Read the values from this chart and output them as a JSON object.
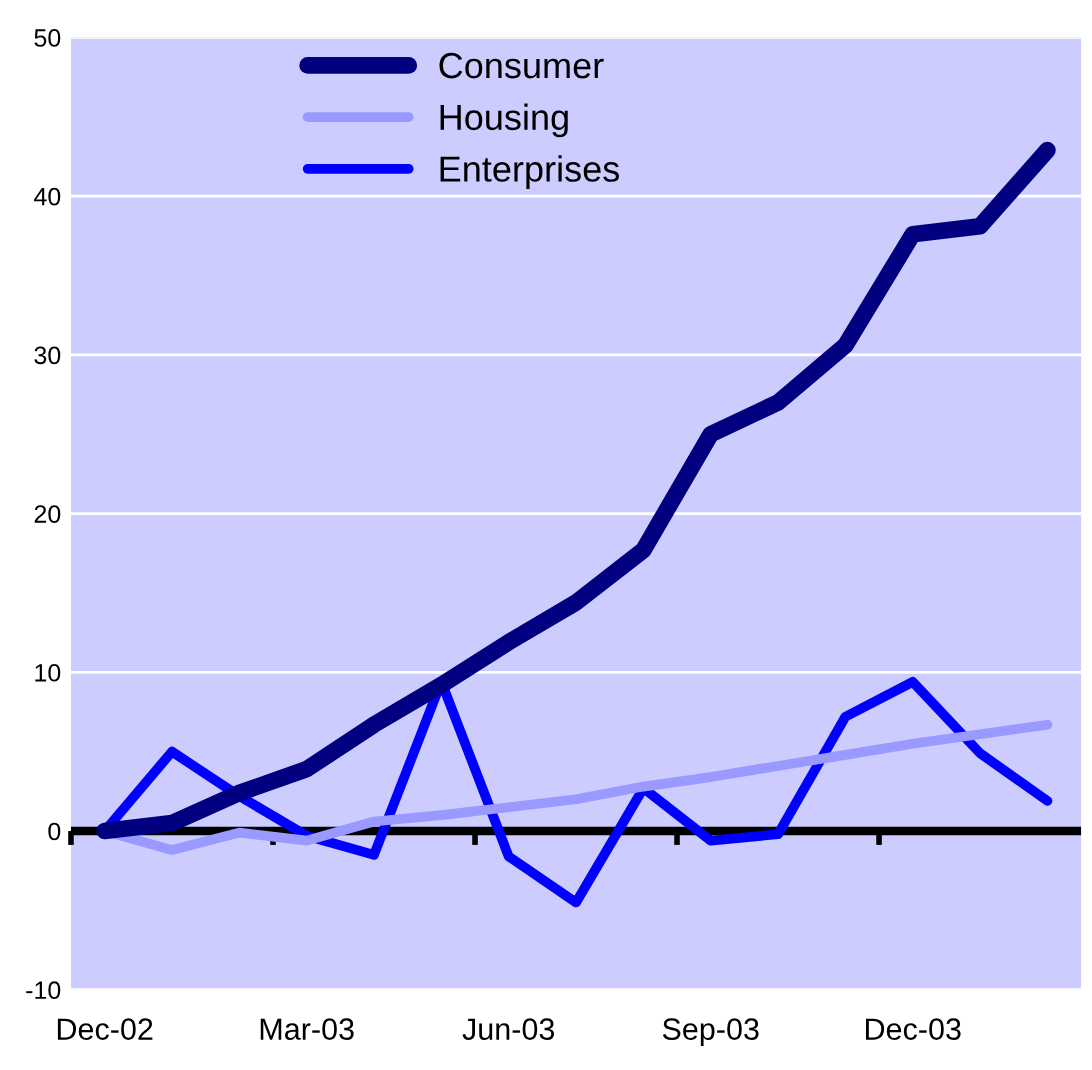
{
  "chart_data": {
    "type": "line",
    "categories": [
      "Dec-02",
      null,
      null,
      "Mar-03",
      null,
      null,
      "Jun-03",
      null,
      null,
      "Sep-03",
      null,
      null,
      "Dec-03",
      null,
      null
    ],
    "series": [
      {
        "name": "Consumer",
        "color": "#000080",
        "values": [
          0,
          0.5,
          2.4,
          3.9,
          6.7,
          9.2,
          11.9,
          14.4,
          17.7,
          25,
          27,
          30.6,
          37.6,
          38.1,
          42.9
        ]
      },
      {
        "name": "Housing",
        "color": "#9999ff",
        "values": [
          0,
          -1.2,
          -0.1,
          -0.6,
          0.6,
          1.0,
          1.5,
          2.0,
          2.8,
          3.4,
          4.1,
          4.8,
          5.5,
          6.1,
          6.7
        ]
      },
      {
        "name": "Enterprises",
        "color": "#0000ff",
        "values": [
          0,
          5.0,
          2.2,
          -0.3,
          -1.5,
          9.4,
          -1.6,
          -4.5,
          2.7,
          -0.6,
          -0.2,
          7.2,
          9.4,
          4.9,
          1.9
        ]
      }
    ],
    "ylim": [
      -10,
      50
    ],
    "yticks": [
      -10,
      0,
      10,
      20,
      30,
      40,
      50
    ],
    "ref_lines": [
      {
        "axis": "y",
        "value": 0,
        "color": "#000000"
      }
    ],
    "grid": "y",
    "legend": "top left",
    "marker": "none",
    "line_style": "solid"
  }
}
